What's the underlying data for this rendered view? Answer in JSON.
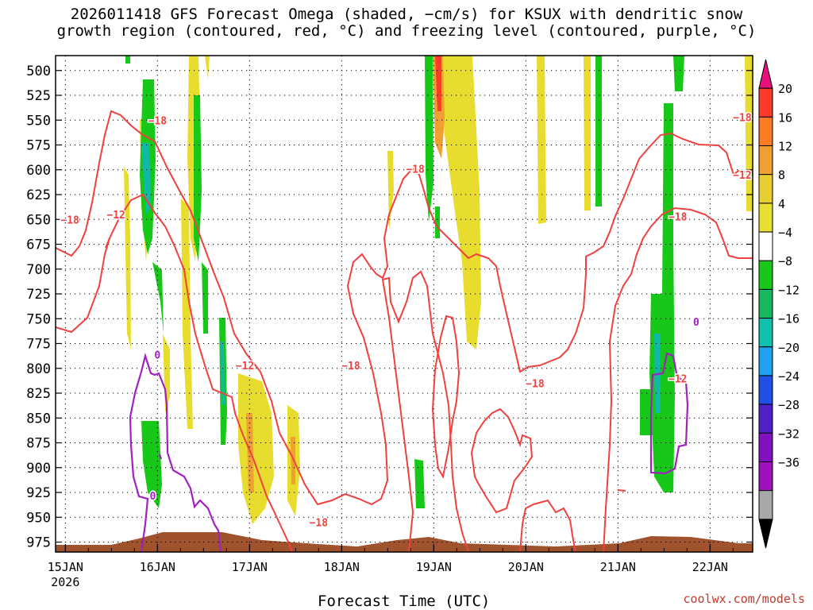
{
  "title_line1": "2026011418 GFS Forecast Omega (shaded, −cm/s) for KSUX with dendritic snow",
  "title_line2": "growth region (contoured, red, °C) and freezing level (contoured, purple, °C)",
  "credit": "coolwx.com/models",
  "chart_data": {
    "type": "heatmap",
    "title": "2026011418 GFS Forecast Omega (shaded, −cm/s) for KSUX with dendritic snow growth region (contoured, red, °C) and freezing level (contoured, purple, °C)",
    "xlabel": "Forecast Time (UTC)",
    "ylabel": "",
    "x_start_label_year": "2026",
    "x_ticks": [
      "15JAN",
      "16JAN",
      "17JAN",
      "18JAN",
      "19JAN",
      "20JAN",
      "21JAN",
      "22JAN"
    ],
    "y_ticks": [
      500,
      525,
      550,
      575,
      600,
      625,
      650,
      675,
      700,
      725,
      750,
      775,
      800,
      825,
      850,
      875,
      900,
      925,
      950,
      975
    ],
    "ylim": [
      985,
      485
    ],
    "grid": true,
    "colorbar": {
      "ticks": [
        "20",
        "16",
        "12",
        "8",
        "4",
        "−4",
        "−8",
        "−12",
        "−16",
        "−20",
        "−24",
        "−28",
        "−32",
        "−36"
      ],
      "colors": [
        "#e8107a",
        "#ff3a2a",
        "#ff7a20",
        "#f0a030",
        "#e8cf30",
        "#e8e030",
        "#ffffff",
        "#18c818",
        "#18b860",
        "#10c0b0",
        "#20a0f0",
        "#2050e8",
        "#5020c8",
        "#8010c0",
        "#a010c0",
        "#a8a8a8",
        "#000000"
      ]
    },
    "contour_labels": [
      {
        "text": "−18",
        "t": 0.05,
        "p": 650
      },
      {
        "text": "−12",
        "t": 0.55,
        "p": 645
      },
      {
        "text": "−18",
        "t": 1.0,
        "p": 550
      },
      {
        "text": "−12",
        "t": 1.95,
        "p": 797
      },
      {
        "text": "−18",
        "t": 2.75,
        "p": 955
      },
      {
        "text": "−18",
        "t": 3.1,
        "p": 797
      },
      {
        "text": "−18",
        "t": 3.8,
        "p": 599
      },
      {
        "text": "−18",
        "t": 5.1,
        "p": 815
      },
      {
        "text": "−18",
        "t": 6.65,
        "p": 647
      },
      {
        "text": "−12",
        "t": 6.65,
        "p": 810
      },
      {
        "text": "−18",
        "t": 7.35,
        "p": 547
      },
      {
        "text": "−12",
        "t": 7.35,
        "p": 605
      },
      {
        "text": "0",
        "t": 1.0,
        "p": 786
      },
      {
        "text": "0",
        "t": 0.95,
        "p": 928
      },
      {
        "text": "0",
        "t": 6.85,
        "p": 753
      }
    ]
  }
}
